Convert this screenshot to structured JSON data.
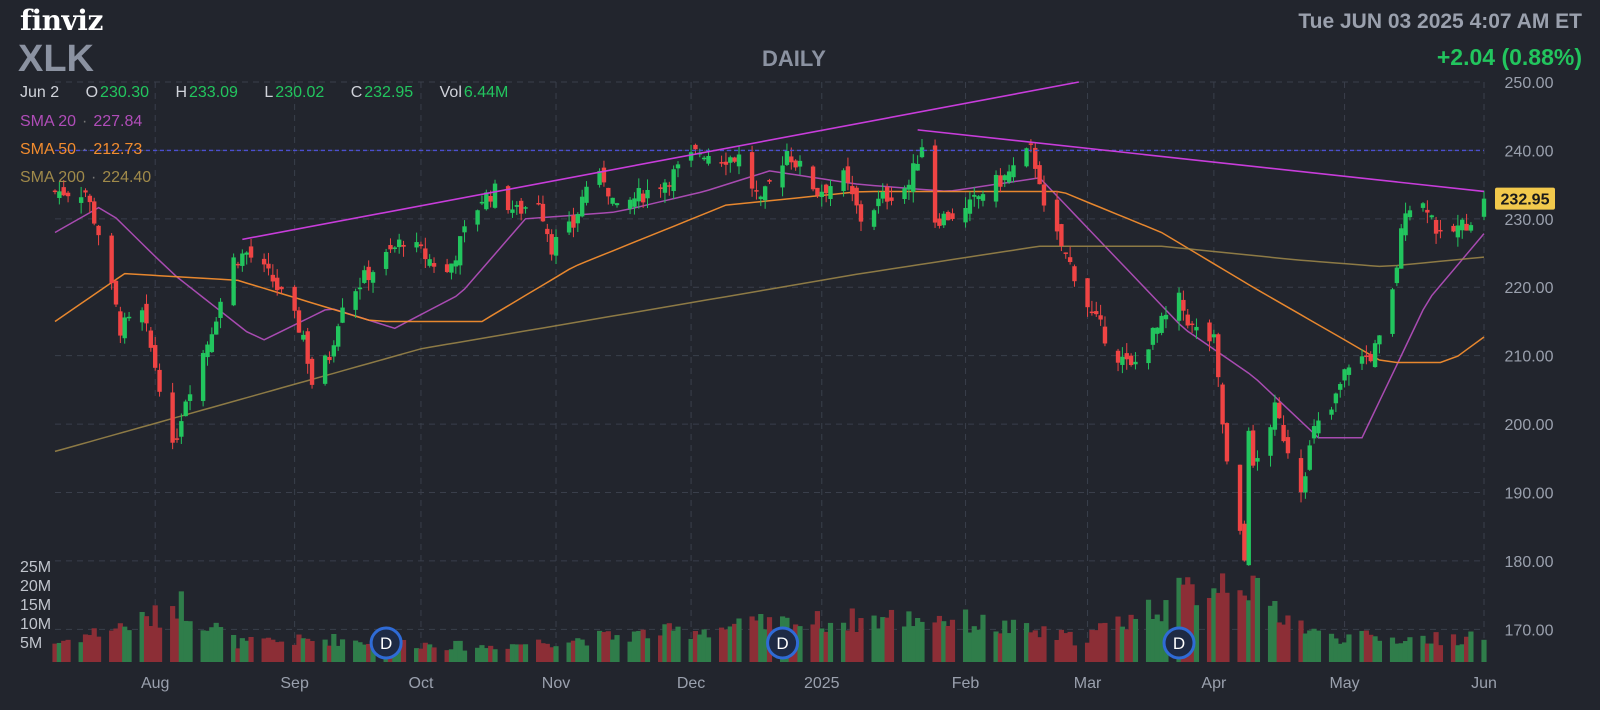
{
  "header": {
    "logo": "finviz",
    "ticker": "XLK",
    "period": "DAILY",
    "datetime": "Tue JUN 03 2025 4:07 AM ET",
    "change": "+2.04 (0.88%)"
  },
  "ohlc": {
    "date": "Jun 2",
    "open_label": "O",
    "open": "230.30",
    "high_label": "H",
    "high": "233.09",
    "low_label": "L",
    "low": "230.02",
    "close_label": "C",
    "close": "232.95",
    "vol_label": "Vol",
    "vol": "6.44M"
  },
  "sma": [
    {
      "label": "SMA 20",
      "value": "227.84",
      "color": "#b04db8"
    },
    {
      "label": "SMA 50",
      "value": "212.73",
      "color": "#f28c2e"
    },
    {
      "label": "SMA 200",
      "value": "224.40",
      "color": "#a08a4a"
    }
  ],
  "colors": {
    "up": "#22c55e",
    "down": "#ef4444",
    "vol_up": "#2f7d4a",
    "vol_down": "#8c2e36",
    "trendline": "#c83ddb",
    "hline": "#4b4fd0",
    "price_tag_bg": "#f2c94c",
    "dividend_marker": "#2f6bd6"
  },
  "chart_data": {
    "type": "candlestick",
    "title": "DAILY",
    "ylim": [
      168,
      250
    ],
    "y_ticks": [
      "250.00",
      "240.00",
      "230.00",
      "220.00",
      "210.00",
      "200.00",
      "190.00",
      "180.00",
      "170.00"
    ],
    "volume_ticks": [
      "25M",
      "20M",
      "15M",
      "10M",
      "5M"
    ],
    "x_labels": [
      "Aug",
      "Sep",
      "Oct",
      "Nov",
      "Dec",
      "2025",
      "Feb",
      "Mar",
      "Apr",
      "May",
      "Jun"
    ],
    "last_price_tag": "232.95",
    "dividend_markers": [
      {
        "date": "2024-09-23",
        "label": "D"
      },
      {
        "date": "2024-12-23",
        "label": "D"
      },
      {
        "date": "2025-03-24",
        "label": "D"
      }
    ],
    "date_range": [
      "2024-07-09",
      "2025-06-02"
    ],
    "close_anchors": [
      [
        "2024-07-09",
        234
      ],
      [
        "2024-07-16",
        234
      ],
      [
        "2024-07-19",
        228
      ],
      [
        "2024-07-24",
        214
      ],
      [
        "2024-07-29",
        216
      ],
      [
        "2024-08-02",
        206
      ],
      [
        "2024-08-05",
        196
      ],
      [
        "2024-08-08",
        204
      ],
      [
        "2024-08-13",
        212
      ],
      [
        "2024-08-19",
        224
      ],
      [
        "2024-08-22",
        225
      ],
      [
        "2024-08-28",
        221
      ],
      [
        "2024-09-04",
        213
      ],
      [
        "2024-09-06",
        206
      ],
      [
        "2024-09-10",
        210
      ],
      [
        "2024-09-13",
        218
      ],
      [
        "2024-09-19",
        222
      ],
      [
        "2024-09-24",
        225
      ],
      [
        "2024-09-27",
        227
      ],
      [
        "2024-10-03",
        224
      ],
      [
        "2024-10-07",
        222
      ],
      [
        "2024-10-11",
        228
      ],
      [
        "2024-10-15",
        233
      ],
      [
        "2024-10-18",
        234
      ],
      [
        "2024-10-23",
        231
      ],
      [
        "2024-10-28",
        233
      ],
      [
        "2024-10-31",
        226
      ],
      [
        "2024-11-05",
        229
      ],
      [
        "2024-11-08",
        235
      ],
      [
        "2024-11-12",
        236
      ],
      [
        "2024-11-15",
        231
      ],
      [
        "2024-11-19",
        233
      ],
      [
        "2024-11-22",
        234
      ],
      [
        "2024-11-27",
        236
      ],
      [
        "2024-12-04",
        240
      ],
      [
        "2024-12-09",
        239
      ],
      [
        "2024-12-13",
        239
      ],
      [
        "2024-12-18",
        232
      ],
      [
        "2024-12-20",
        235
      ],
      [
        "2024-12-24",
        240
      ],
      [
        "2024-12-31",
        234
      ],
      [
        "2025-01-06",
        236
      ],
      [
        "2025-01-10",
        230
      ],
      [
        "2025-01-15",
        233
      ],
      [
        "2025-01-21",
        235
      ],
      [
        "2025-01-24",
        241
      ],
      [
        "2025-01-27",
        230
      ],
      [
        "2025-02-03",
        231
      ],
      [
        "2025-02-07",
        234
      ],
      [
        "2025-02-12",
        236
      ],
      [
        "2025-02-18",
        240
      ],
      [
        "2025-02-20",
        236
      ],
      [
        "2025-02-21",
        231
      ],
      [
        "2025-02-25",
        226
      ],
      [
        "2025-02-28",
        222
      ],
      [
        "2025-03-04",
        216
      ],
      [
        "2025-03-10",
        210
      ],
      [
        "2025-03-13",
        208
      ],
      [
        "2025-03-18",
        213
      ],
      [
        "2025-03-24",
        218
      ],
      [
        "2025-03-27",
        214
      ],
      [
        "2025-04-01",
        212
      ],
      [
        "2025-04-04",
        194
      ],
      [
        "2025-04-08",
        180
      ],
      [
        "2025-04-09",
        200
      ],
      [
        "2025-04-10",
        193
      ],
      [
        "2025-04-15",
        202
      ],
      [
        "2025-04-21",
        191
      ],
      [
        "2025-04-24",
        199
      ],
      [
        "2025-04-28",
        202
      ],
      [
        "2025-05-02",
        209
      ],
      [
        "2025-05-07",
        210
      ],
      [
        "2025-05-09",
        212
      ],
      [
        "2025-05-12",
        219
      ],
      [
        "2025-05-15",
        232
      ],
      [
        "2025-05-20",
        232
      ],
      [
        "2025-05-23",
        227
      ],
      [
        "2025-05-28",
        229
      ],
      [
        "2025-05-30",
        230
      ],
      [
        "2025-06-02",
        232.95
      ]
    ],
    "volume_profile": [
      [
        "2024-07-09",
        5
      ],
      [
        "2024-08-02",
        12
      ],
      [
        "2024-08-06",
        16
      ],
      [
        "2024-08-20",
        5
      ],
      [
        "2024-09-10",
        6
      ],
      [
        "2024-10-15",
        4
      ],
      [
        "2024-12-20",
        10
      ],
      [
        "2025-01-27",
        12
      ],
      [
        "2025-03-01",
        6
      ],
      [
        "2025-04-07",
        24
      ],
      [
        "2025-04-10",
        18
      ],
      [
        "2025-04-25",
        7
      ],
      [
        "2025-05-15",
        6
      ],
      [
        "2025-06-02",
        6.44
      ]
    ],
    "sma_series": [
      {
        "name": "SMA 20",
        "points": [
          [
            "2024-07-09",
            228
          ],
          [
            "2024-07-20",
            232
          ],
          [
            "2024-08-05",
            222
          ],
          [
            "2024-08-25",
            212
          ],
          [
            "2024-09-10",
            217
          ],
          [
            "2024-09-25",
            214
          ],
          [
            "2024-10-10",
            219
          ],
          [
            "2024-10-25",
            230
          ],
          [
            "2024-11-15",
            231
          ],
          [
            "2024-12-05",
            234
          ],
          [
            "2024-12-20",
            237
          ],
          [
            "2025-01-10",
            235
          ],
          [
            "2025-01-30",
            234
          ],
          [
            "2025-02-20",
            236
          ],
          [
            "2025-03-10",
            224
          ],
          [
            "2025-03-25",
            214
          ],
          [
            "2025-04-10",
            207
          ],
          [
            "2025-04-25",
            198
          ],
          [
            "2025-05-05",
            198
          ],
          [
            "2025-05-20",
            218
          ],
          [
            "2025-06-02",
            227.84
          ]
        ]
      },
      {
        "name": "SMA 50",
        "points": [
          [
            "2024-07-09",
            215
          ],
          [
            "2024-07-25",
            222
          ],
          [
            "2024-08-20",
            221
          ],
          [
            "2024-09-20",
            215
          ],
          [
            "2024-10-15",
            215
          ],
          [
            "2024-11-05",
            223
          ],
          [
            "2024-12-10",
            232
          ],
          [
            "2025-01-10",
            234
          ],
          [
            "2025-02-10",
            234
          ],
          [
            "2025-02-25",
            234
          ],
          [
            "2025-03-20",
            228
          ],
          [
            "2025-04-10",
            220
          ],
          [
            "2025-05-10",
            209
          ],
          [
            "2025-05-25",
            209
          ],
          [
            "2025-06-02",
            212.73
          ]
        ]
      },
      {
        "name": "SMA 200",
        "points": [
          [
            "2024-07-09",
            196
          ],
          [
            "2024-10-01",
            211
          ],
          [
            "2025-01-10",
            222
          ],
          [
            "2025-02-20",
            226
          ],
          [
            "2025-03-20",
            226
          ],
          [
            "2025-04-20",
            224
          ],
          [
            "2025-05-10",
            223
          ],
          [
            "2025-06-02",
            224.4
          ]
        ]
      }
    ],
    "trendlines": [
      {
        "from": [
          "2024-08-21",
          227
        ],
        "to": [
          "2025-03-01",
          250
        ]
      },
      {
        "from": [
          "2025-01-23",
          243
        ],
        "to": [
          "2025-06-02",
          234
        ]
      }
    ],
    "horizontal_line": 240
  }
}
